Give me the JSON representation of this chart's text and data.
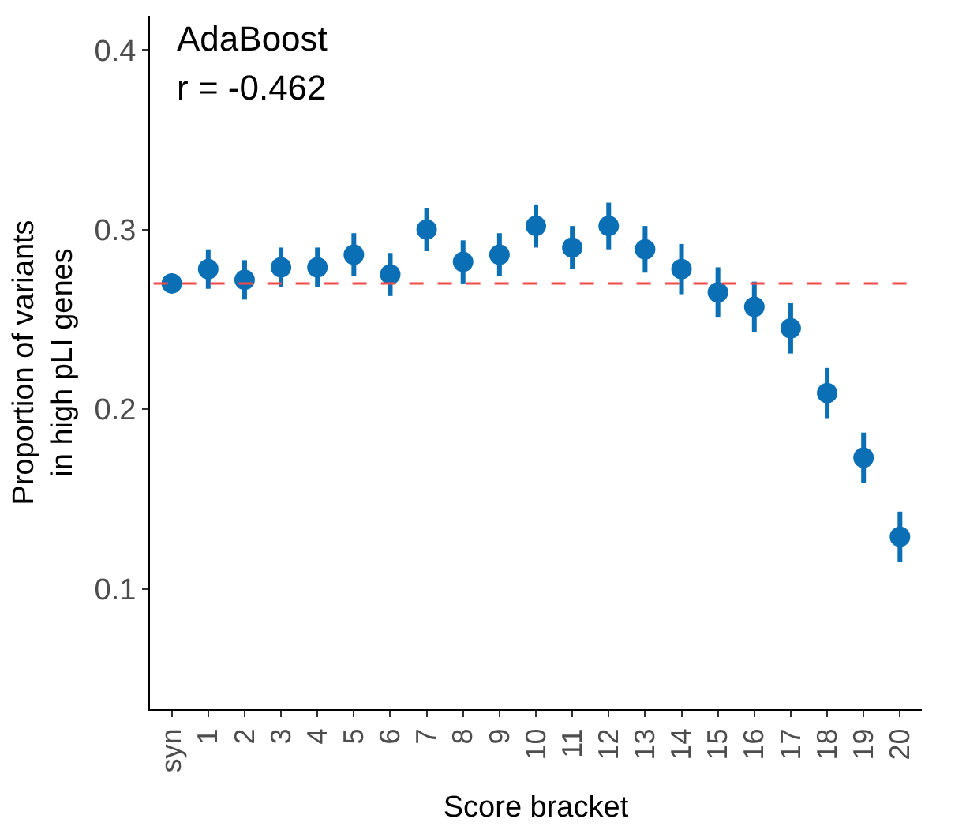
{
  "chart_data": {
    "type": "scatter",
    "xlabel": "Score bracket",
    "ylabel": "Proportion of variants\nin high pLI genes",
    "categories": [
      "syn",
      "1",
      "2",
      "3",
      "4",
      "5",
      "6",
      "7",
      "8",
      "9",
      "10",
      "11",
      "12",
      "13",
      "14",
      "15",
      "16",
      "17",
      "18",
      "19",
      "20"
    ],
    "series": [
      {
        "color": "#0a6fb5",
        "values": [
          0.27,
          0.278,
          0.272,
          0.279,
          0.279,
          0.286,
          0.275,
          0.3,
          0.282,
          0.286,
          0.302,
          0.29,
          0.302,
          0.289,
          0.278,
          0.265,
          0.257,
          0.245,
          0.209,
          0.173,
          0.129
        ],
        "errors": [
          0.002,
          0.011,
          0.011,
          0.011,
          0.011,
          0.012,
          0.012,
          0.012,
          0.012,
          0.012,
          0.012,
          0.012,
          0.013,
          0.013,
          0.014,
          0.014,
          0.014,
          0.014,
          0.014,
          0.014,
          0.014
        ]
      }
    ],
    "ylim": [
      0.033,
      0.419
    ],
    "yticks": [
      0.1,
      0.2,
      0.3,
      0.4
    ],
    "ref_lines": [
      {
        "axis": "y",
        "value": 0.27,
        "color": "#f04a4a",
        "line_style": "dashed"
      }
    ],
    "annotations": [
      "AdaBoost",
      "r = -0.462"
    ],
    "marker": "circle"
  }
}
